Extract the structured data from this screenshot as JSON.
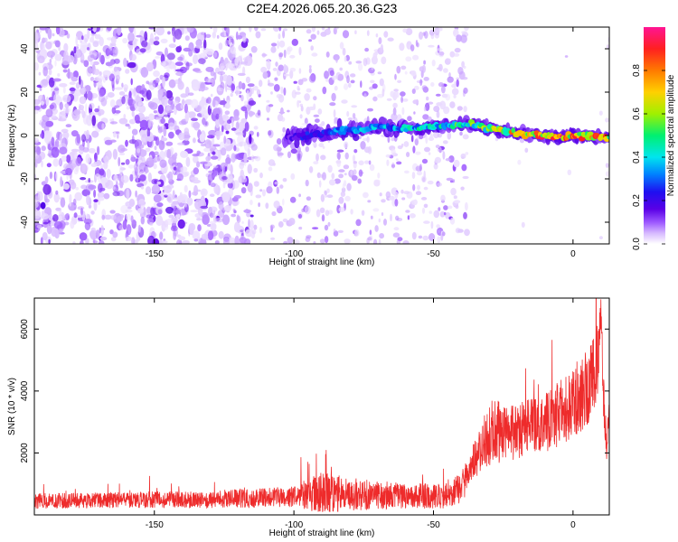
{
  "title": "C2E4.2026.065.20.36.G23",
  "colors": {
    "snr_line": "#ee2b2b",
    "colormap": [
      "#ffffff",
      "#d6b8ff",
      "#9c57ff",
      "#5a00e6",
      "#1f10f0",
      "#0080ff",
      "#00e5ee",
      "#00f070",
      "#a0f000",
      "#ffd000",
      "#ff7a00",
      "#ff2020",
      "#ff1493"
    ]
  },
  "chart_data": [
    {
      "type": "heatmap",
      "title": "C2E4.2026.065.20.36.G23",
      "xlabel": "Height of straight line (km)",
      "ylabel": "Frequency (Hz)",
      "xlim": [
        -193,
        13
      ],
      "ylim": [
        -50,
        50
      ],
      "x_ticks": [
        -150,
        -100,
        -50,
        0
      ],
      "y_ticks": [
        -40,
        -20,
        0,
        20,
        40
      ],
      "grid": false,
      "colorbar": {
        "label": "Normalized spectral amplitude",
        "range": [
          0,
          1
        ],
        "ticks": [
          0.0,
          0.2,
          0.4,
          0.6,
          0.8
        ]
      },
      "signal_ridge": {
        "x": [
          -103,
          -95,
          -85,
          -75,
          -68,
          -60,
          -50,
          -42,
          -35,
          -28,
          -20,
          -12,
          -5,
          0,
          5,
          10,
          13
        ],
        "frequency_hz": [
          -1,
          0,
          2,
          3,
          4,
          3,
          4,
          5,
          5,
          3,
          1,
          0,
          -1,
          0,
          0,
          -1,
          -1
        ],
        "peak_amplitude": [
          0.2,
          0.3,
          0.35,
          0.4,
          0.4,
          0.45,
          0.5,
          0.55,
          0.6,
          0.7,
          0.85,
          0.9,
          0.95,
          0.9,
          0.85,
          0.9,
          0.8
        ]
      },
      "noise": {
        "dense_region_x": [
          -193,
          -115
        ],
        "sparse_region_x": [
          -115,
          -38
        ],
        "clean_region_x": [
          -38,
          13
        ],
        "typical_amplitude": 0.1
      }
    },
    {
      "type": "line",
      "xlabel": "Height of straight line (km)",
      "ylabel": "SNR (10 * v/v)",
      "xlim": [
        -193,
        13
      ],
      "ylim": [
        0,
        7000
      ],
      "x_ticks": [
        -150,
        -100,
        -50,
        0
      ],
      "y_ticks": [
        2000,
        4000,
        6000
      ],
      "grid": false,
      "series": [
        {
          "x": [
            -193,
            -180,
            -170,
            -160,
            -150,
            -140,
            -130,
            -120,
            -110,
            -100,
            -90,
            -80,
            -70,
            -60,
            -50,
            -45,
            -40,
            -35,
            -30,
            -28,
            -25,
            -20,
            -15,
            -10,
            -5,
            0,
            3,
            6,
            8,
            9,
            10,
            11,
            12,
            13
          ],
          "y": [
            450,
            460,
            470,
            480,
            490,
            500,
            510,
            530,
            560,
            600,
            680,
            660,
            640,
            620,
            600,
            620,
            900,
            1800,
            2500,
            3000,
            2600,
            2700,
            2900,
            3000,
            3300,
            3600,
            3900,
            4300,
            4700,
            5200,
            6600,
            3600,
            2200,
            3500
          ],
          "noise_amplitude": [
            250,
            250,
            250,
            260,
            270,
            280,
            290,
            300,
            320,
            350,
            700,
            550,
            450,
            420,
            400,
            420,
            500,
            700,
            1000,
            1400,
            900,
            900,
            900,
            1000,
            1100,
            1100,
            1200,
            1300,
            1300,
            1300,
            400,
            900,
            500,
            800
          ]
        }
      ]
    }
  ]
}
